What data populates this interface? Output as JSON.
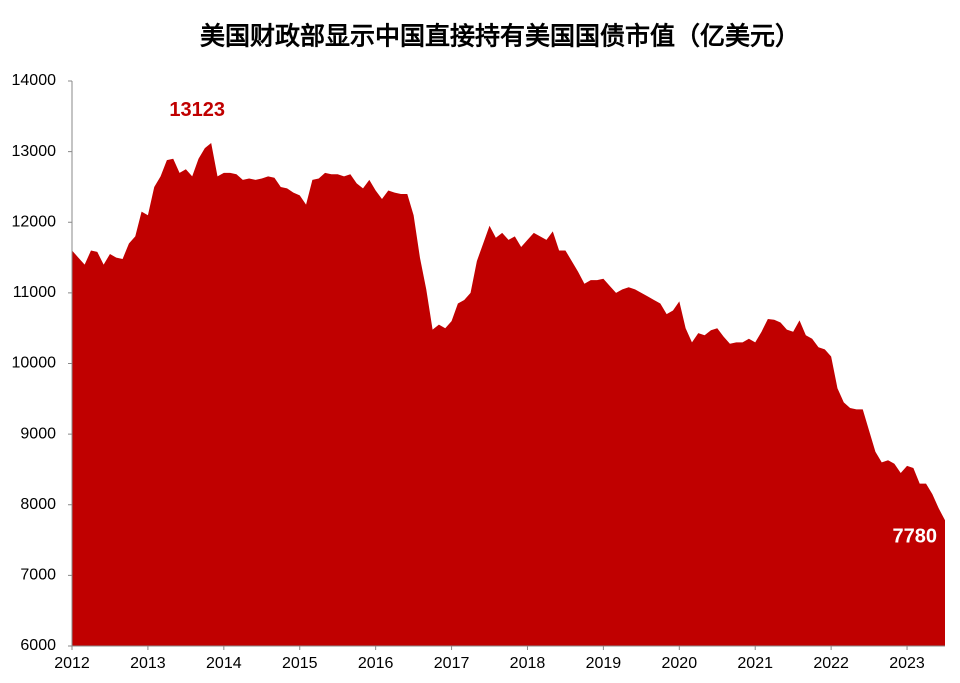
{
  "chart_data": {
    "type": "area",
    "title": "美国财政部显示中国直接持有美国国债市值（亿美元）",
    "color": "#c00000",
    "categories": [
      "2012",
      null,
      null,
      null,
      null,
      null,
      null,
      null,
      null,
      null,
      null,
      null,
      "2013",
      null,
      null,
      null,
      null,
      null,
      null,
      null,
      null,
      null,
      null,
      null,
      "2014",
      null,
      null,
      null,
      null,
      null,
      null,
      null,
      null,
      null,
      null,
      null,
      "2015",
      null,
      null,
      null,
      null,
      null,
      null,
      null,
      null,
      null,
      null,
      null,
      "2016",
      null,
      null,
      null,
      null,
      null,
      null,
      null,
      null,
      null,
      null,
      null,
      "2017",
      null,
      null,
      null,
      null,
      null,
      null,
      null,
      null,
      null,
      null,
      null,
      "2018",
      null,
      null,
      null,
      null,
      null,
      null,
      null,
      null,
      null,
      null,
      null,
      "2019",
      null,
      null,
      null,
      null,
      null,
      null,
      null,
      null,
      null,
      null,
      null,
      "2020",
      null,
      null,
      null,
      null,
      null,
      null,
      null,
      null,
      null,
      null,
      null,
      "2021",
      null,
      null,
      null,
      null,
      null,
      null,
      null,
      null,
      null,
      null,
      null,
      "2022",
      null,
      null,
      null,
      null,
      null,
      null,
      null,
      null,
      null,
      null,
      null,
      "2023",
      null,
      null,
      null,
      null,
      null,
      null
    ],
    "values": [
      11600,
      11500,
      11400,
      11600,
      11580,
      11400,
      11550,
      11500,
      11480,
      11700,
      11800,
      12150,
      12100,
      12500,
      12650,
      12880,
      12900,
      12700,
      12750,
      12650,
      12900,
      13050,
      13123,
      12650,
      12700,
      12700,
      12680,
      12600,
      12620,
      12600,
      12620,
      12650,
      12630,
      12500,
      12480,
      12420,
      12380,
      12250,
      12600,
      12620,
      12700,
      12680,
      12680,
      12650,
      12680,
      12550,
      12480,
      12600,
      12450,
      12330,
      12450,
      12420,
      12400,
      12400,
      12100,
      11500,
      11050,
      10480,
      10550,
      10500,
      10600,
      10850,
      10900,
      11000,
      11450,
      11700,
      11950,
      11780,
      11850,
      11750,
      11800,
      11650,
      11750,
      11850,
      11800,
      11750,
      11870,
      11600,
      11600,
      11450,
      11300,
      11130,
      11180,
      11180,
      11200,
      11100,
      11000,
      11050,
      11080,
      11050,
      11000,
      10950,
      10900,
      10850,
      10700,
      10750,
      10880,
      10500,
      10300,
      10430,
      10400,
      10470,
      10500,
      10380,
      10280,
      10300,
      10300,
      10350,
      10300,
      10450,
      10630,
      10620,
      10580,
      10480,
      10450,
      10610,
      10400,
      10350,
      10230,
      10200,
      10100,
      9650,
      9450,
      9370,
      9350,
      9350,
      9050,
      8750,
      8600,
      8630,
      8580,
      8450,
      8550,
      8520,
      8300,
      8300,
      8150,
      7950,
      7780
    ],
    "ylim": [
      6000,
      14000
    ],
    "yticks": [
      6000,
      7000,
      8000,
      9000,
      10000,
      11000,
      12000,
      13000,
      14000
    ],
    "grid": false
  }
}
